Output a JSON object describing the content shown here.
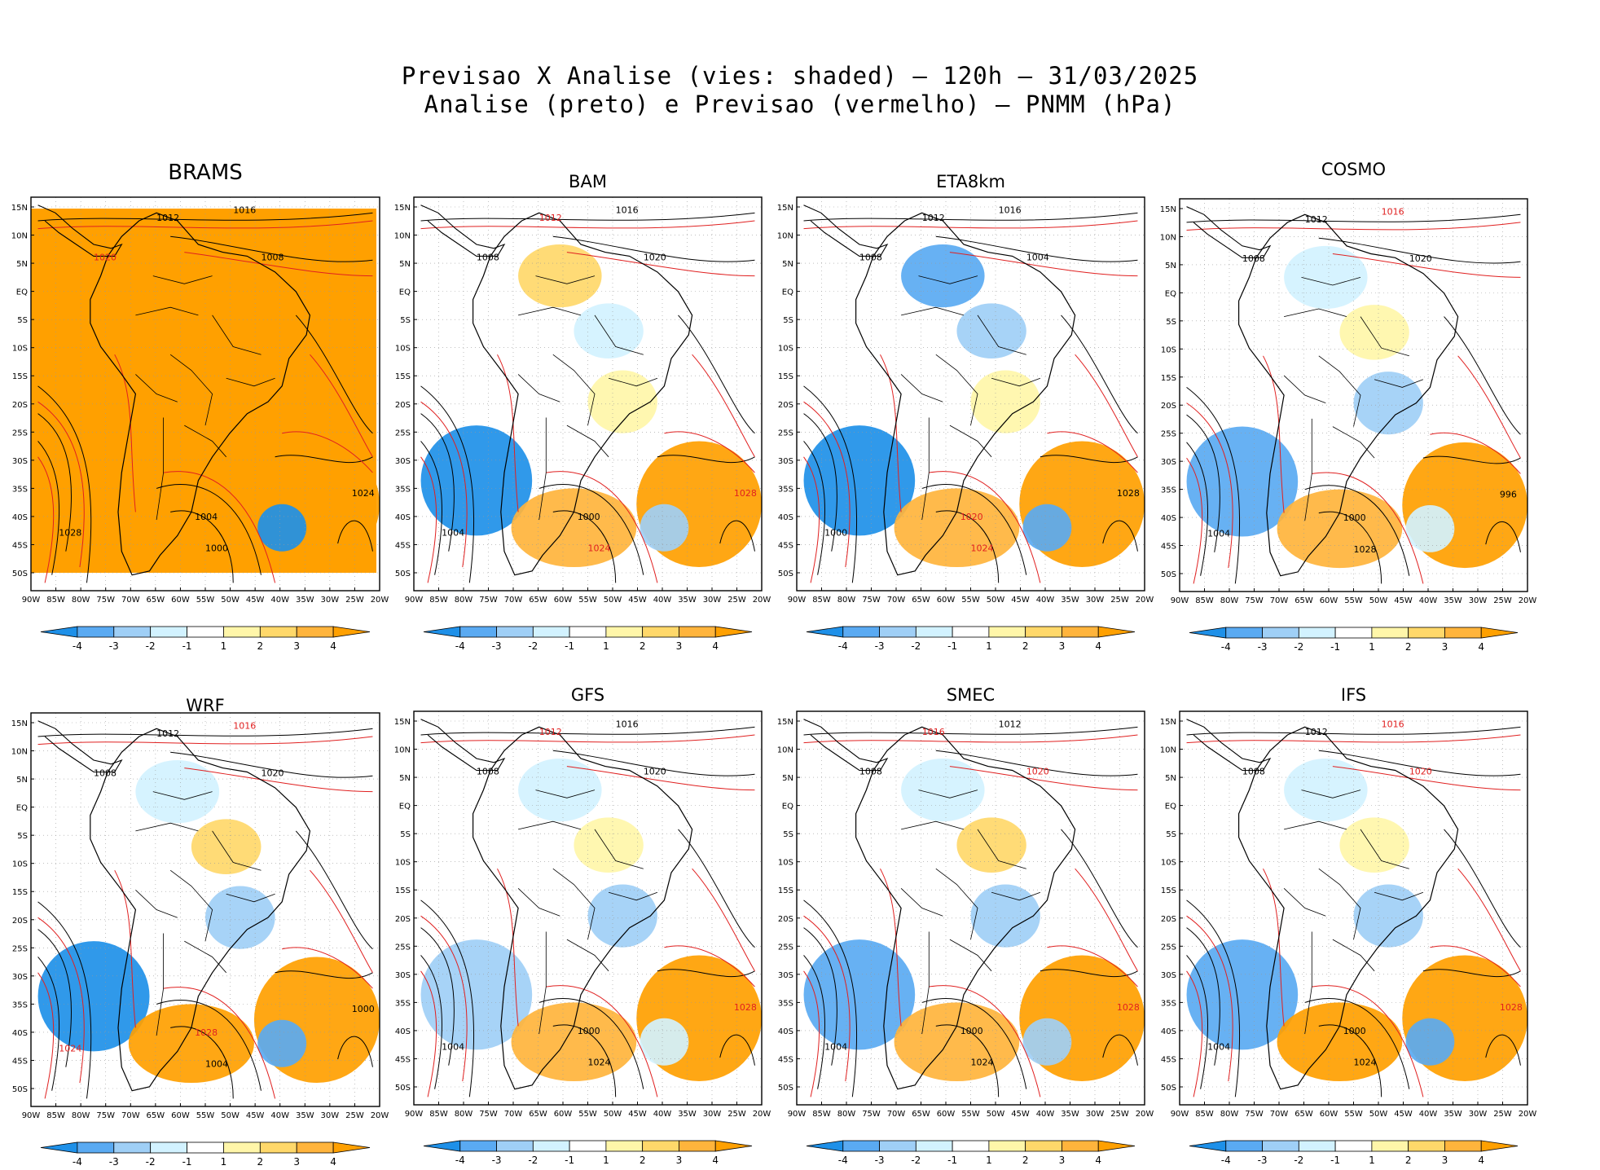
{
  "title": {
    "line1": "Previsao X Analise (vies: shaded) – 120h – 31/03/2025",
    "line2": "Analise (preto) e Previsao (vermelho) – PNMM (hPa)"
  },
  "lat_labels": [
    "15N",
    "10N",
    "5N",
    "EQ",
    "5S",
    "10S",
    "15S",
    "20S",
    "25S",
    "30S",
    "35S",
    "40S",
    "45S",
    "50S"
  ],
  "lon_labels": [
    "90W",
    "85W",
    "80W",
    "75W",
    "70W",
    "65W",
    "60W",
    "55W",
    "50W",
    "45W",
    "40W",
    "35W",
    "30W",
    "25W",
    "20W"
  ],
  "colorbar": {
    "labels": [
      "-4",
      "-3",
      "-2",
      "-1",
      "1",
      "2",
      "3",
      "4"
    ],
    "colors": [
      "#1e90e8",
      "#5aaaf2",
      "#9fcff6",
      "#d2f2ff",
      "#ffffff",
      "#fff6a9",
      "#ffd86a",
      "#ffb43c",
      "#ffa000"
    ]
  },
  "colors": {
    "analysis_contour": "#000000",
    "forecast_contour": "#e02020",
    "coastline": "#000000",
    "grid": "#999999"
  },
  "panels": [
    {
      "name": "BRAMS",
      "bias_levels": [
        4,
        4,
        4,
        4,
        4,
        4,
        -4
      ],
      "contour_labels": [
        {
          "text": "1012",
          "analysis": true
        },
        {
          "text": "1016",
          "analysis": true
        },
        {
          "text": "1020",
          "analysis": false
        },
        {
          "text": "1008",
          "analysis": true
        },
        {
          "text": "1028",
          "analysis": true
        },
        {
          "text": "1004",
          "analysis": true
        },
        {
          "text": "1000",
          "analysis": true
        },
        {
          "text": "1024",
          "analysis": true
        }
      ]
    },
    {
      "name": "BAM",
      "bias_levels": [
        2,
        -1,
        1,
        -4,
        3,
        4,
        -2
      ],
      "contour_labels": [
        {
          "text": "1012",
          "analysis": false
        },
        {
          "text": "1016",
          "analysis": true
        },
        {
          "text": "1008",
          "analysis": true
        },
        {
          "text": "1020",
          "analysis": true
        },
        {
          "text": "1004",
          "analysis": true
        },
        {
          "text": "1000",
          "analysis": true
        },
        {
          "text": "1024",
          "analysis": false
        },
        {
          "text": "1028",
          "analysis": false
        }
      ]
    },
    {
      "name": "ETA8km",
      "bias_levels": [
        -3,
        -2,
        1,
        -4,
        3,
        4,
        -3
      ],
      "contour_labels": [
        {
          "text": "1012",
          "analysis": true
        },
        {
          "text": "1016",
          "analysis": true
        },
        {
          "text": "1008",
          "analysis": true
        },
        {
          "text": "1004",
          "analysis": true
        },
        {
          "text": "1000",
          "analysis": true
        },
        {
          "text": "1020",
          "analysis": false
        },
        {
          "text": "1024",
          "analysis": false
        },
        {
          "text": "1028",
          "analysis": true
        }
      ]
    },
    {
      "name": "COSMO",
      "bias_levels": [
        -1,
        1,
        -2,
        -3,
        3,
        4,
        -1
      ],
      "contour_labels": [
        {
          "text": "1012",
          "analysis": true
        },
        {
          "text": "1016",
          "analysis": false
        },
        {
          "text": "1008",
          "analysis": true
        },
        {
          "text": "1020",
          "analysis": true
        },
        {
          "text": "1004",
          "analysis": true
        },
        {
          "text": "1000",
          "analysis": true
        },
        {
          "text": "1028",
          "analysis": true
        },
        {
          "text": "996",
          "analysis": true
        }
      ]
    },
    {
      "name": "WRF",
      "bias_levels": [
        -1,
        2,
        -2,
        -4,
        4,
        4,
        -3
      ],
      "contour_labels": [
        {
          "text": "1012",
          "analysis": true
        },
        {
          "text": "1016",
          "analysis": false
        },
        {
          "text": "1008",
          "analysis": true
        },
        {
          "text": "1020",
          "analysis": true
        },
        {
          "text": "1024",
          "analysis": false
        },
        {
          "text": "1028",
          "analysis": false
        },
        {
          "text": "1004",
          "analysis": true
        },
        {
          "text": "1000",
          "analysis": true
        }
      ]
    },
    {
      "name": "GFS",
      "bias_levels": [
        -1,
        1,
        -2,
        -2,
        3,
        4,
        -1
      ],
      "contour_labels": [
        {
          "text": "1012",
          "analysis": false
        },
        {
          "text": "1016",
          "analysis": true
        },
        {
          "text": "1008",
          "analysis": true
        },
        {
          "text": "1020",
          "analysis": true
        },
        {
          "text": "1004",
          "analysis": true
        },
        {
          "text": "1000",
          "analysis": true
        },
        {
          "text": "1024",
          "analysis": true
        },
        {
          "text": "1028",
          "analysis": false
        }
      ]
    },
    {
      "name": "SMEC",
      "bias_levels": [
        -1,
        2,
        -2,
        -3,
        3,
        4,
        -2
      ],
      "contour_labels": [
        {
          "text": "1016",
          "analysis": false
        },
        {
          "text": "1012",
          "analysis": true
        },
        {
          "text": "1008",
          "analysis": true
        },
        {
          "text": "1020",
          "analysis": false
        },
        {
          "text": "1004",
          "analysis": true
        },
        {
          "text": "1000",
          "analysis": true
        },
        {
          "text": "1024",
          "analysis": true
        },
        {
          "text": "1028",
          "analysis": false
        }
      ]
    },
    {
      "name": "IFS",
      "bias_levels": [
        -1,
        1,
        -2,
        -3,
        4,
        4,
        -3
      ],
      "contour_labels": [
        {
          "text": "1012",
          "analysis": true
        },
        {
          "text": "1016",
          "analysis": false
        },
        {
          "text": "1008",
          "analysis": true
        },
        {
          "text": "1020",
          "analysis": false
        },
        {
          "text": "1004",
          "analysis": true
        },
        {
          "text": "1000",
          "analysis": true
        },
        {
          "text": "1024",
          "analysis": true
        },
        {
          "text": "1028",
          "analysis": false
        }
      ]
    }
  ]
}
